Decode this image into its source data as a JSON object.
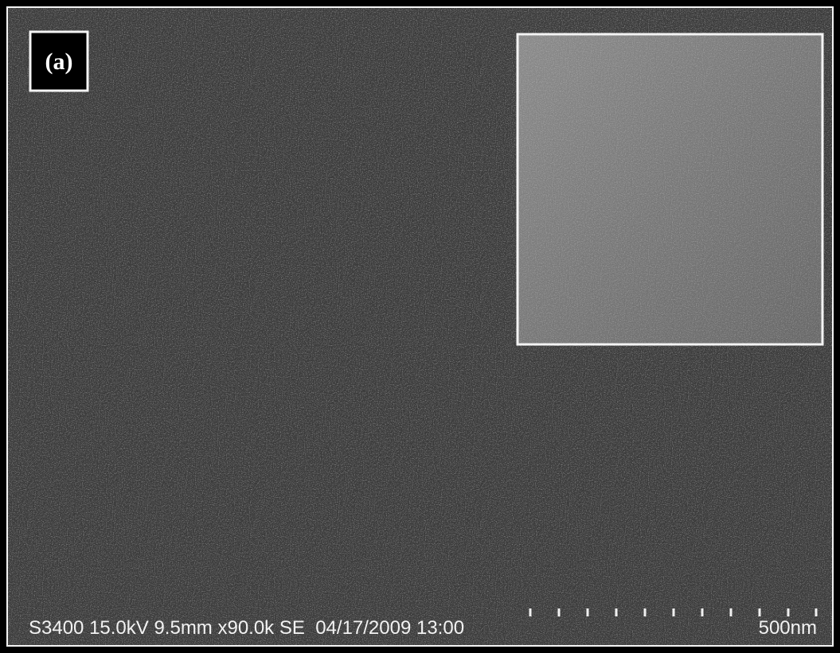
{
  "panel_label": "(a)",
  "info_bar": {
    "parameters": "S3400 15.0kV 9.5mm x90.0k SE  04/17/2009 13:00",
    "scale_label": "500nm"
  }
}
